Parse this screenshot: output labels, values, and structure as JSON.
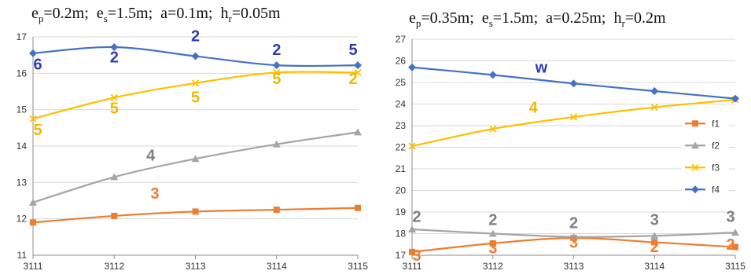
{
  "colors": {
    "f1": "#ed7d31",
    "f2": "#a5a5a5",
    "f3": "#ffc000",
    "f4": "#4472c4",
    "grid": "#d9d9d9",
    "axis": "#8c8c8c"
  },
  "chart_data": [
    {
      "type": "line",
      "title_parts": {
        "ep": "=0.2m;",
        "es": "=1.5m;",
        "a": "a=0.1m;",
        "hr": "=0.05m"
      },
      "categories": [
        "3111",
        "3112",
        "3113",
        "3114",
        "3115"
      ],
      "ylim": [
        11,
        17
      ],
      "yticks": [
        11,
        12,
        13,
        14,
        15,
        16,
        17
      ],
      "grid": true,
      "series": [
        {
          "key": "f1",
          "values": [
            11.9,
            12.08,
            12.2,
            12.25,
            12.3
          ]
        },
        {
          "key": "f2",
          "values": [
            12.45,
            13.15,
            13.65,
            14.05,
            14.38
          ]
        },
        {
          "key": "f3",
          "values": [
            14.75,
            15.33,
            15.73,
            16.02,
            16.02
          ]
        },
        {
          "key": "f4",
          "values": [
            16.55,
            16.72,
            16.47,
            16.22,
            16.22
          ]
        }
      ],
      "annotations": [
        {
          "text": "6",
          "series": "f4",
          "x": "3111",
          "y": 16.1
        },
        {
          "text": "2",
          "series": "f4",
          "x": "3112",
          "y": 16.3
        },
        {
          "text": "2",
          "series": "f4",
          "x": "3113",
          "y": 16.88
        },
        {
          "text": "2",
          "series": "f4",
          "x": "3114",
          "y": 16.5
        },
        {
          "text": "5",
          "series": "f4",
          "x": "3115",
          "y": 16.5
        },
        {
          "text": "5",
          "series": "f3",
          "x": "3111",
          "y": 14.3
        },
        {
          "text": "5",
          "series": "f3",
          "x": "3112",
          "y": 14.9
        },
        {
          "text": "5",
          "series": "f3",
          "x": "3113",
          "y": 15.2
        },
        {
          "text": "5",
          "series": "f3",
          "x": "3114",
          "y": 15.7
        },
        {
          "text": "2",
          "series": "f3",
          "x": "3115",
          "y": 15.7
        },
        {
          "text": "4",
          "series": "f2",
          "x": "3112.45",
          "y": 13.6
        },
        {
          "text": "3",
          "series": "f1",
          "x": "3112.5",
          "y": 12.55
        }
      ]
    },
    {
      "type": "line",
      "title_parts": {
        "ep": "=0.35m;",
        "es": "=1.5m;",
        "a": "a=0.25m;",
        "hr": "=0.2m"
      },
      "categories": [
        "3111",
        "3112",
        "3113",
        "3114",
        "3115"
      ],
      "ylim": [
        17,
        27
      ],
      "yticks": [
        17,
        18,
        19,
        20,
        21,
        22,
        23,
        24,
        25,
        26,
        27
      ],
      "grid": true,
      "legend_position": "right",
      "series": [
        {
          "key": "f1",
          "name": "f1",
          "values": [
            17.15,
            17.55,
            17.8,
            17.6,
            17.38
          ]
        },
        {
          "key": "f2",
          "name": "f2",
          "values": [
            18.2,
            18.0,
            17.85,
            17.9,
            18.05
          ]
        },
        {
          "key": "f3",
          "name": "f3",
          "values": [
            22.05,
            22.85,
            23.4,
            23.85,
            24.2
          ]
        },
        {
          "key": "f4",
          "name": "f4",
          "values": [
            25.7,
            25.35,
            24.95,
            24.6,
            24.25
          ]
        }
      ],
      "annotations": [
        {
          "text": "w",
          "series": "f4",
          "x": "3112.6",
          "y": 25.45
        },
        {
          "text": "4",
          "series": "f3",
          "x": "3112.5",
          "y": 23.6
        },
        {
          "text": "2",
          "series": "f2",
          "x": "3111",
          "y": 18.55
        },
        {
          "text": "2",
          "series": "f2",
          "x": "3112",
          "y": 18.4
        },
        {
          "text": "2",
          "series": "f2",
          "x": "3113",
          "y": 18.25
        },
        {
          "text": "3",
          "series": "f2",
          "x": "3114",
          "y": 18.4
        },
        {
          "text": "3",
          "series": "f2",
          "x": "3115",
          "y": 18.55
        },
        {
          "text": "3",
          "series": "f1",
          "x": "3111",
          "y": 16.75
        },
        {
          "text": "3",
          "series": "f1",
          "x": "3112",
          "y": 17.1
        },
        {
          "text": "3",
          "series": "f1",
          "x": "3113",
          "y": 17.35
        },
        {
          "text": "2",
          "series": "f1",
          "x": "3114",
          "y": 17.15
        },
        {
          "text": "2",
          "series": "f1",
          "x": "3115",
          "y": 17.25
        }
      ]
    }
  ]
}
